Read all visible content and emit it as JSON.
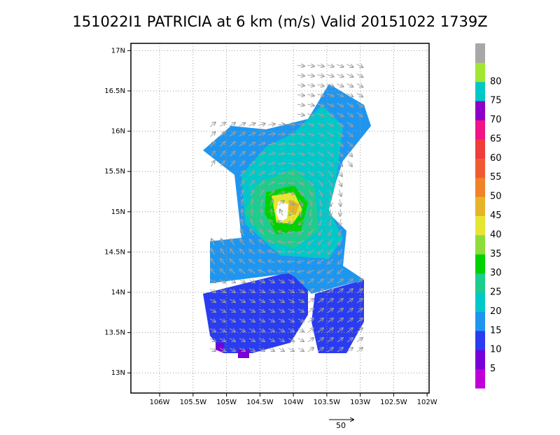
{
  "chart_data": {
    "type": "wind-field",
    "title": "151022I1 PATRICIA at 6 km (m/s) Valid 20151022 1739Z",
    "xlim": [
      -106.43,
      -101.97
    ],
    "ylim": [
      12.75,
      17.09
    ],
    "xticks": [
      {
        "value": -106,
        "label": "106W"
      },
      {
        "value": -105.5,
        "label": "105.5W"
      },
      {
        "value": -105,
        "label": "105W"
      },
      {
        "value": -104.5,
        "label": "104.5W"
      },
      {
        "value": -104,
        "label": "104W"
      },
      {
        "value": -103.5,
        "label": "103.5W"
      },
      {
        "value": -103,
        "label": "103W"
      },
      {
        "value": -102.5,
        "label": "102.5W"
      },
      {
        "value": -102,
        "label": "102W"
      }
    ],
    "yticks": [
      {
        "value": 13,
        "label": "13N"
      },
      {
        "value": 13.5,
        "label": "13.5N"
      },
      {
        "value": 14,
        "label": "14N"
      },
      {
        "value": 14.5,
        "label": "14.5N"
      },
      {
        "value": 15,
        "label": "15N"
      },
      {
        "value": 15.5,
        "label": "15.5N"
      },
      {
        "value": 16,
        "label": "16N"
      },
      {
        "value": 16.5,
        "label": "16.5N"
      },
      {
        "value": 17,
        "label": "17N"
      }
    ],
    "grid": true,
    "colorbar": {
      "levels": [
        5,
        10,
        15,
        20,
        25,
        30,
        35,
        40,
        45,
        50,
        55,
        60,
        65,
        70,
        75,
        80
      ],
      "colors": [
        "#c000d8",
        "#7800d8",
        "#2a3cf0",
        "#1e96f0",
        "#00c8c8",
        "#1ecc8c",
        "#00d200",
        "#8cdc3c",
        "#e6e632",
        "#e6b428",
        "#f08228",
        "#f05a32",
        "#f03c3c",
        "#f01488",
        "#8c00c8",
        "#00c8c8",
        "#a0e632",
        "#a8a8a8"
      ]
    },
    "reference_vector": 50
  }
}
